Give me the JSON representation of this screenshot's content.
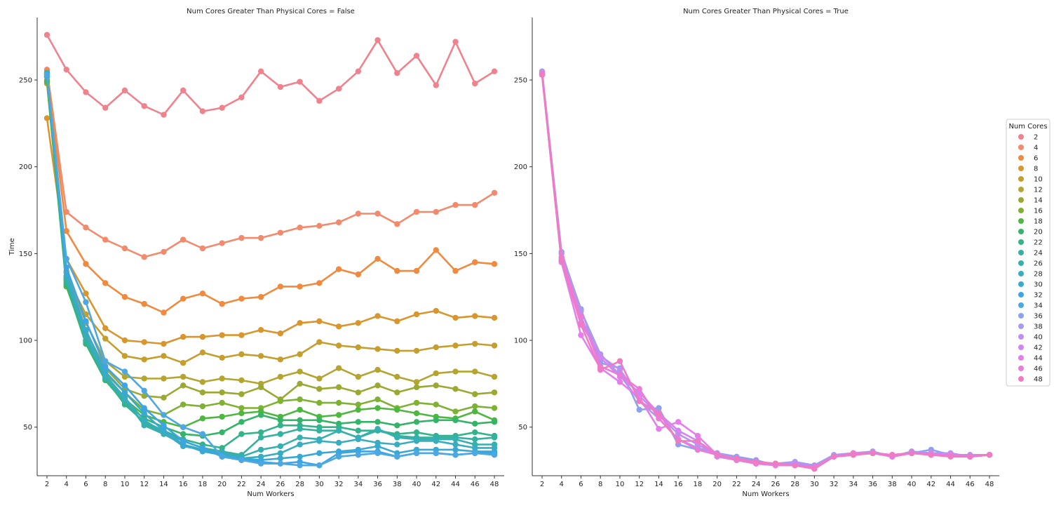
{
  "chart_data": [
    {
      "type": "line",
      "title": "Num Cores Greater Than Physical Cores = False",
      "xlabel": "Num Workers",
      "ylabel": "Time",
      "categories": [
        "2",
        "4",
        "6",
        "8",
        "10",
        "12",
        "14",
        "16",
        "18",
        "20",
        "22",
        "24",
        "26",
        "28",
        "30",
        "32",
        "34",
        "36",
        "38",
        "40",
        "42",
        "44",
        "46",
        "48"
      ],
      "ylim": [
        22,
        286
      ],
      "yticks": [
        50,
        100,
        150,
        200,
        250
      ],
      "grid": false,
      "series": [
        {
          "name": "2",
          "values": [
            276,
            256,
            243,
            234,
            244,
            235,
            230,
            244,
            232,
            234,
            240,
            255,
            246,
            249,
            238,
            245,
            255,
            273,
            254,
            264,
            247,
            272,
            248,
            255
          ]
        },
        {
          "name": "4",
          "values": [
            256,
            174,
            165,
            158,
            153,
            148,
            151,
            158,
            153,
            156,
            159,
            159,
            162,
            165,
            166,
            168,
            173,
            173,
            167,
            174,
            174,
            178,
            178,
            185
          ]
        },
        {
          "name": "6",
          "values": [
            255,
            163,
            144,
            133,
            125,
            121,
            116,
            124,
            127,
            121,
            124,
            125,
            131,
            131,
            133,
            141,
            138,
            147,
            140,
            140,
            152,
            140,
            145,
            144
          ]
        },
        {
          "name": "8",
          "values": [
            228,
            147,
            127,
            107,
            100,
            99,
            98,
            102,
            102,
            103,
            103,
            106,
            104,
            110,
            111,
            108,
            110,
            114,
            111,
            115,
            117,
            113,
            114,
            113
          ]
        },
        {
          "name": "10",
          "values": [
            248,
            137,
            115,
            101,
            91,
            89,
            91,
            87,
            93,
            90,
            92,
            91,
            89,
            92,
            99,
            97,
            96,
            95,
            94,
            94,
            96,
            97,
            98,
            97
          ]
        },
        {
          "name": "12",
          "values": [
            254,
            140,
            110,
            88,
            79,
            78,
            78,
            79,
            76,
            78,
            77,
            75,
            79,
            82,
            78,
            84,
            79,
            83,
            79,
            76,
            81,
            82,
            82,
            79
          ]
        },
        {
          "name": "14",
          "values": [
            252,
            135,
            105,
            84,
            72,
            68,
            67,
            74,
            70,
            70,
            69,
            73,
            66,
            75,
            72,
            73,
            70,
            74,
            70,
            73,
            74,
            72,
            69,
            70
          ]
        },
        {
          "name": "16",
          "values": [
            250,
            134,
            103,
            81,
            70,
            60,
            57,
            63,
            62,
            64,
            61,
            61,
            65,
            66,
            64,
            64,
            63,
            66,
            61,
            64,
            63,
            59,
            62,
            61
          ]
        },
        {
          "name": "18",
          "values": [
            249,
            131,
            100,
            79,
            66,
            57,
            53,
            50,
            55,
            56,
            58,
            59,
            56,
            60,
            56,
            57,
            60,
            61,
            60,
            58,
            56,
            55,
            59,
            54
          ]
        },
        {
          "name": "20",
          "values": [
            252,
            132,
            98,
            77,
            64,
            55,
            50,
            46,
            45,
            47,
            53,
            57,
            54,
            54,
            54,
            52,
            53,
            53,
            51,
            53,
            54,
            54,
            52,
            53
          ]
        },
        {
          "name": "22",
          "values": [
            253,
            133,
            99,
            78,
            63,
            53,
            48,
            43,
            40,
            38,
            46,
            47,
            51,
            51,
            50,
            50,
            48,
            48,
            46,
            47,
            45,
            45,
            47,
            45
          ]
        },
        {
          "name": "24",
          "values": [
            253,
            135,
            100,
            78,
            65,
            52,
            47,
            42,
            38,
            36,
            34,
            44,
            46,
            49,
            48,
            48,
            44,
            48,
            45,
            44,
            44,
            44,
            43,
            44
          ]
        },
        {
          "name": "26",
          "values": [
            254,
            136,
            102,
            79,
            66,
            51,
            46,
            40,
            37,
            35,
            33,
            37,
            39,
            44,
            43,
            48,
            44,
            49,
            44,
            43,
            43,
            43,
            40,
            40
          ]
        },
        {
          "name": "28",
          "values": [
            254,
            137,
            103,
            80,
            67,
            54,
            47,
            39,
            37,
            35,
            32,
            33,
            35,
            40,
            42,
            41,
            43,
            41,
            40,
            42,
            42,
            40,
            38,
            38
          ]
        },
        {
          "name": "30",
          "values": [
            253,
            139,
            106,
            82,
            70,
            58,
            48,
            40,
            36,
            34,
            32,
            31,
            32,
            33,
            35,
            36,
            37,
            39,
            35,
            37,
            37,
            37,
            36,
            36
          ]
        },
        {
          "name": "32",
          "values": [
            252,
            142,
            111,
            85,
            74,
            61,
            51,
            42,
            38,
            33,
            31,
            30,
            29,
            30,
            28,
            35,
            36,
            36,
            33,
            35,
            35,
            34,
            35,
            35
          ]
        },
        {
          "name": "34",
          "values": [
            253,
            147,
            122,
            88,
            82,
            71,
            57,
            50,
            46,
            33,
            31,
            29,
            29,
            28,
            28,
            33,
            34,
            35,
            33,
            35,
            35,
            34,
            35,
            34
          ]
        }
      ],
      "series_colors": [
        "#f0828e",
        "#f28a6e",
        "#ef8a3f",
        "#d9952e",
        "#c59e2e",
        "#b3a52f",
        "#9ba932",
        "#7fb133",
        "#4eb740",
        "#34b468",
        "#33b38a",
        "#34b19f",
        "#35afaf",
        "#37adbe",
        "#39a9d1",
        "#3da4e6",
        "#4ca8e3"
      ]
    },
    {
      "type": "line",
      "title": "Num Cores Greater Than Physical Cores = True",
      "xlabel": "Num Workers",
      "ylabel": "",
      "categories": [
        "2",
        "4",
        "6",
        "8",
        "10",
        "12",
        "14",
        "16",
        "18",
        "20",
        "22",
        "24",
        "26",
        "28",
        "30",
        "32",
        "34",
        "36",
        "38",
        "40",
        "42",
        "44",
        "46",
        "48"
      ],
      "ylim": [
        22,
        286
      ],
      "yticks": [
        50,
        100,
        150,
        200,
        250
      ],
      "grid": false,
      "series": [
        {
          "name": "36",
          "values": [
            254,
            150,
            118,
            87,
            84,
            60,
            61,
            40,
            37,
            35,
            33,
            31,
            28,
            29,
            28,
            33,
            35,
            35,
            34,
            35,
            37,
            34,
            34,
            34
          ]
        },
        {
          "name": "38",
          "values": [
            255,
            151,
            117,
            92,
            80,
            65,
            55,
            43,
            38,
            35,
            32,
            30,
            29,
            30,
            28,
            34,
            35,
            36,
            33,
            36,
            35,
            35,
            33,
            34
          ]
        },
        {
          "name": "40",
          "values": [
            254,
            147,
            110,
            91,
            83,
            68,
            57,
            46,
            40,
            34,
            32,
            29,
            28,
            29,
            27,
            33,
            34,
            35,
            34,
            35,
            35,
            34,
            34,
            34
          ]
        },
        {
          "name": "42",
          "values": [
            253,
            146,
            113,
            90,
            79,
            70,
            58,
            48,
            42,
            33,
            31,
            29,
            29,
            28,
            26,
            33,
            34,
            35,
            33,
            35,
            35,
            34,
            33,
            34
          ]
        },
        {
          "name": "44",
          "values": [
            253,
            145,
            103,
            84,
            76,
            67,
            49,
            53,
            45,
            34,
            31,
            29,
            28,
            28,
            26,
            33,
            34,
            35,
            33,
            35,
            34,
            34,
            33,
            34
          ]
        },
        {
          "name": "46",
          "values": [
            254,
            148,
            114,
            85,
            80,
            72,
            55,
            43,
            37,
            34,
            31,
            29,
            29,
            28,
            27,
            33,
            35,
            35,
            34,
            35,
            34,
            34,
            33,
            34
          ]
        },
        {
          "name": "48",
          "values": [
            253,
            146,
            109,
            83,
            88,
            65,
            58,
            42,
            42,
            34,
            32,
            30,
            29,
            28,
            26,
            33,
            34,
            35,
            34,
            35,
            34,
            33,
            33,
            34
          ]
        }
      ],
      "series_colors": [
        "#8ea0f0",
        "#a89af1",
        "#bf8ef0",
        "#d384ef",
        "#e67ded",
        "#ea7bd8",
        "#ef7cc3"
      ]
    }
  ],
  "legend": {
    "title": "Num Cores",
    "placement": "right",
    "items": [
      {
        "label": "2",
        "color": "#f0828e"
      },
      {
        "label": "4",
        "color": "#f28a6e"
      },
      {
        "label": "6",
        "color": "#ef8a3f"
      },
      {
        "label": "8",
        "color": "#d9952e"
      },
      {
        "label": "10",
        "color": "#c59e2e"
      },
      {
        "label": "12",
        "color": "#b3a52f"
      },
      {
        "label": "14",
        "color": "#9ba932"
      },
      {
        "label": "16",
        "color": "#7fb133"
      },
      {
        "label": "18",
        "color": "#4eb740"
      },
      {
        "label": "20",
        "color": "#34b468"
      },
      {
        "label": "22",
        "color": "#33b38a"
      },
      {
        "label": "24",
        "color": "#34b19f"
      },
      {
        "label": "26",
        "color": "#35afaf"
      },
      {
        "label": "28",
        "color": "#37adbe"
      },
      {
        "label": "30",
        "color": "#39a9d1"
      },
      {
        "label": "32",
        "color": "#3da4e6"
      },
      {
        "label": "34",
        "color": "#4ca8e3"
      },
      {
        "label": "36",
        "color": "#8ea0f0"
      },
      {
        "label": "38",
        "color": "#a89af1"
      },
      {
        "label": "40",
        "color": "#bf8ef0"
      },
      {
        "label": "42",
        "color": "#d384ef"
      },
      {
        "label": "44",
        "color": "#e67ded"
      },
      {
        "label": "46",
        "color": "#ea7bd8"
      },
      {
        "label": "48",
        "color": "#ef7cc3"
      }
    ]
  }
}
